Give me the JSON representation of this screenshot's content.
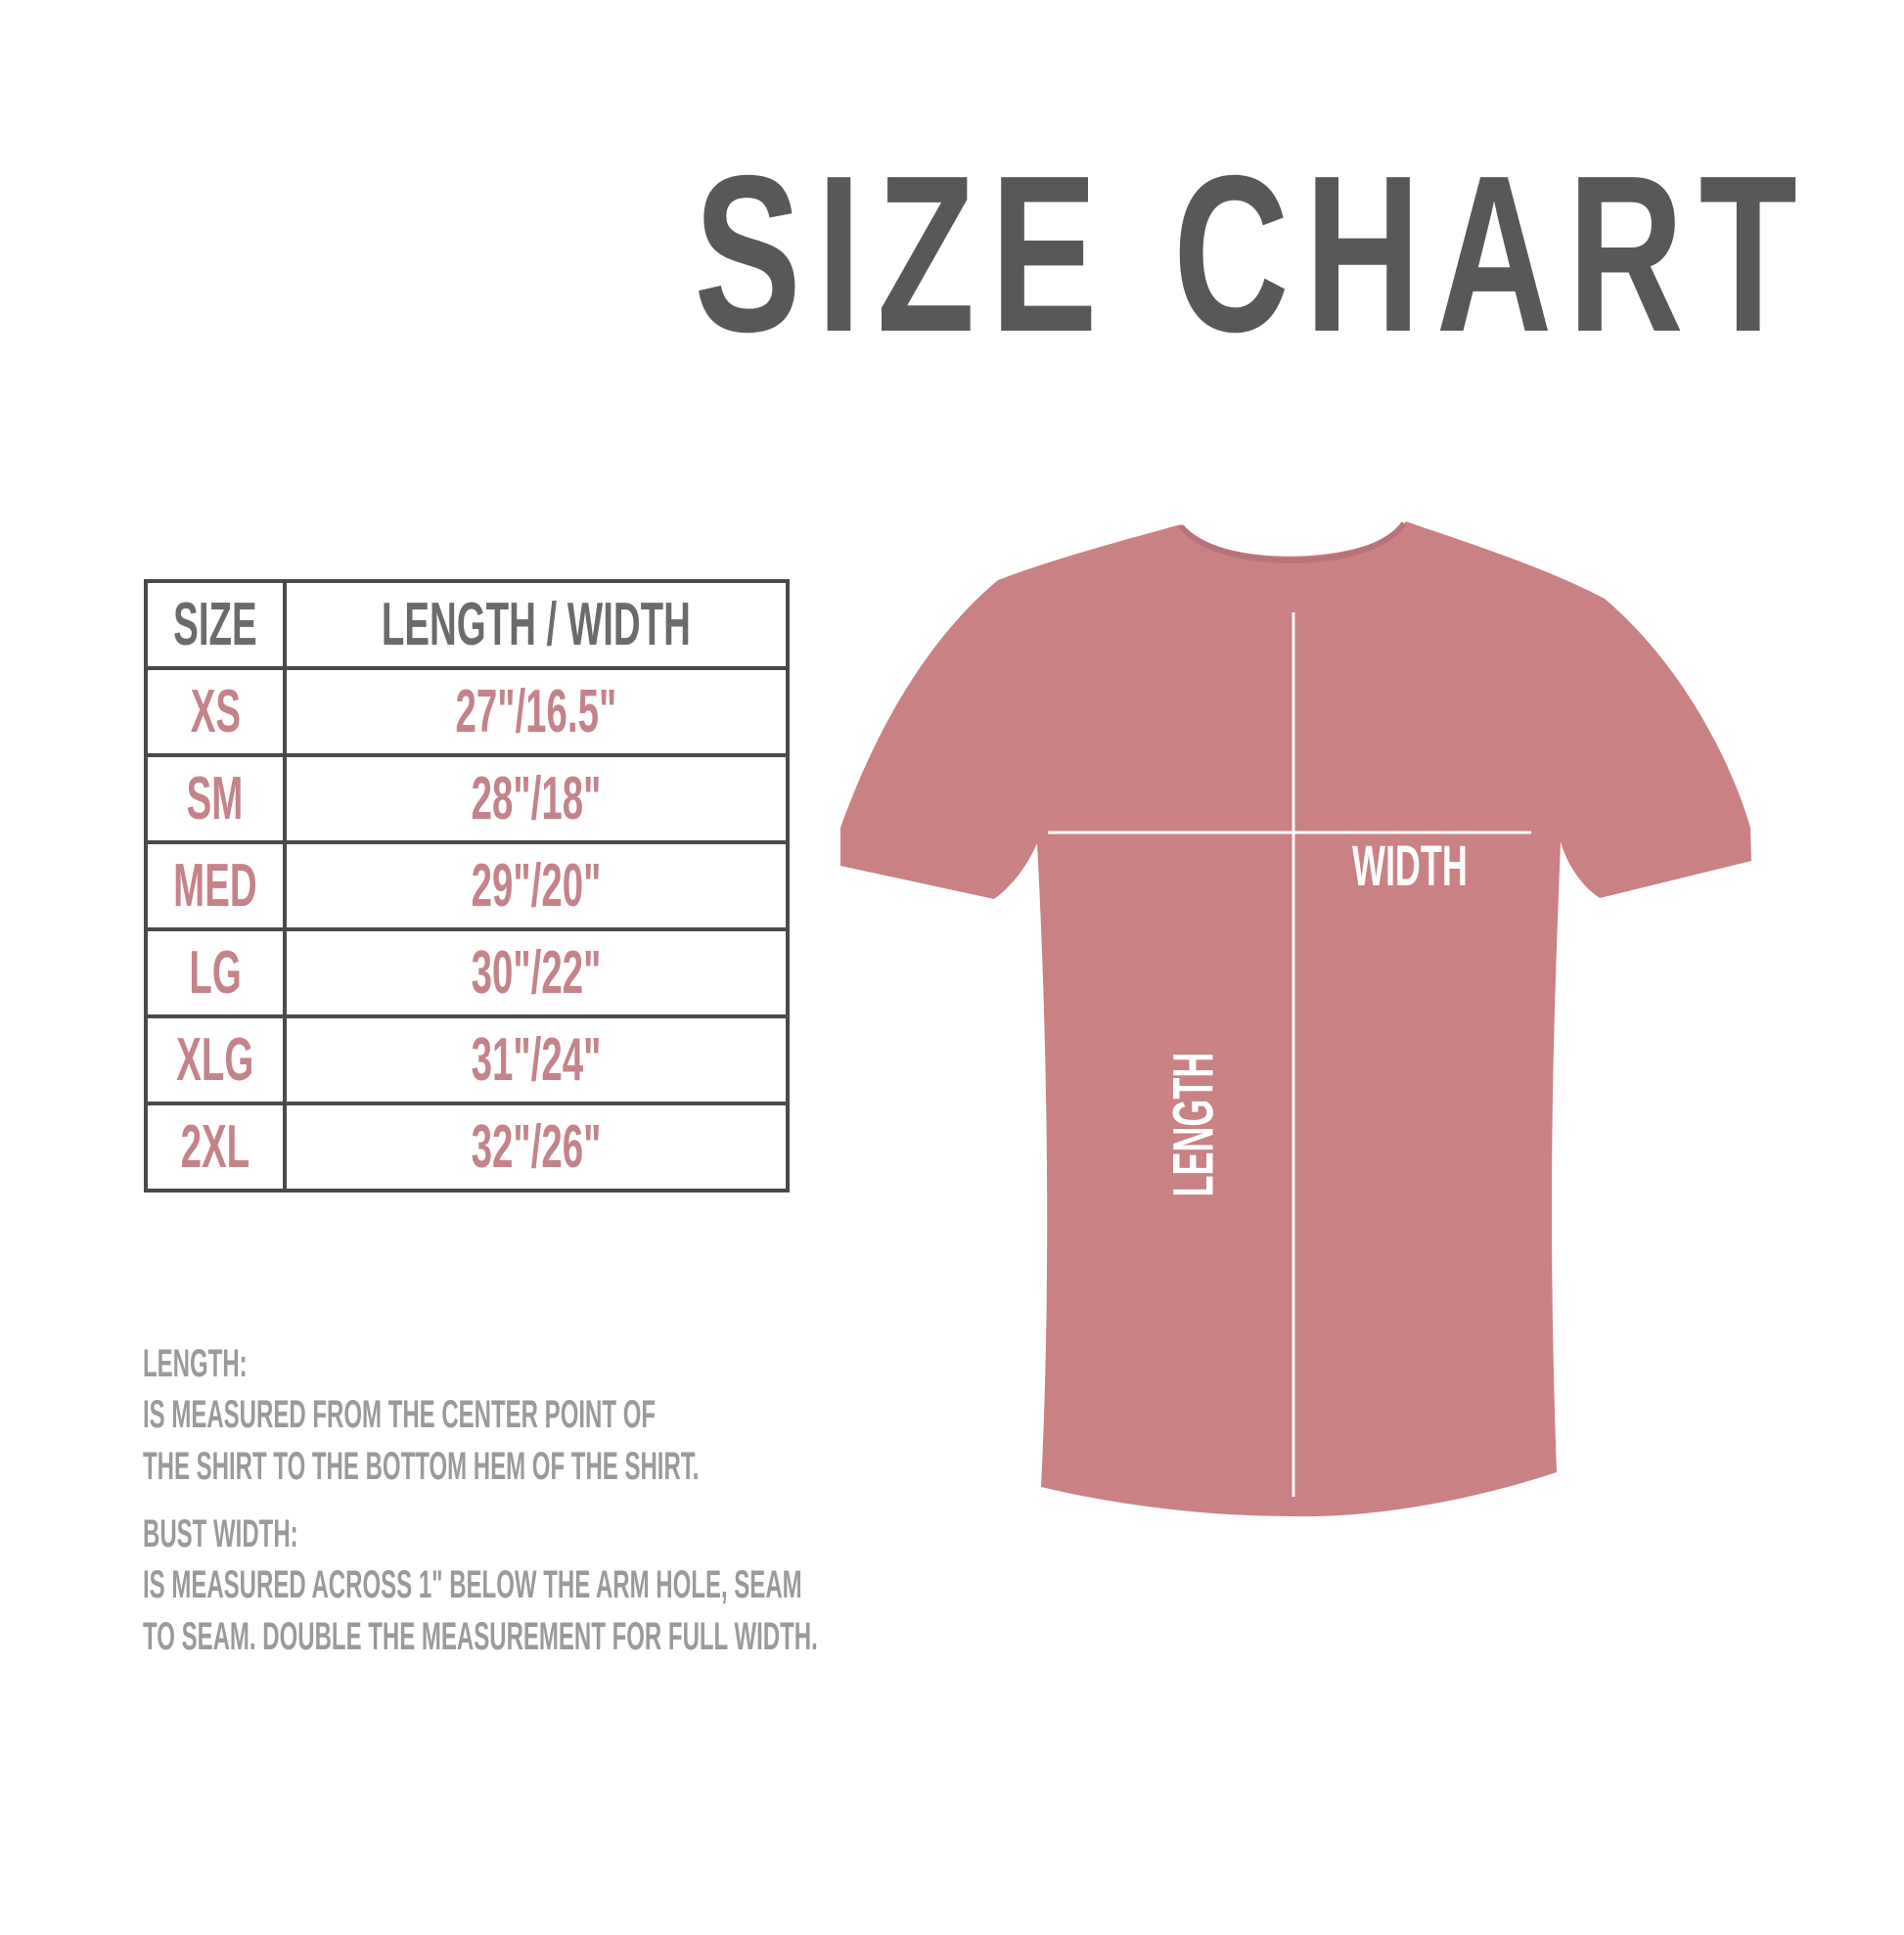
{
  "title": "SIZE CHART",
  "colors": {
    "title": "#58585a",
    "accent": "#c4838a",
    "shirt": "#c98184",
    "note": "#9a9a9a",
    "border": "#4a4a4a"
  },
  "table": {
    "headers": [
      "SIZE",
      "LENGTH / WIDTH"
    ],
    "rows": [
      {
        "size": "XS",
        "value": "27\"/16.5\""
      },
      {
        "size": "SM",
        "value": "28\"/18\""
      },
      {
        "size": "MED",
        "value": "29\"/20\""
      },
      {
        "size": "LG",
        "value": "30\"/22\""
      },
      {
        "size": "XLG",
        "value": "31\"/24\""
      },
      {
        "size": "2XL",
        "value": "32\"/26\""
      }
    ]
  },
  "notes": {
    "length_label": "LENGTH:",
    "length_line1": "IS MEASURED FROM THE CENTER POINT OF",
    "length_line2": "THE SHIRT TO THE BOTTOM HEM OF THE SHIRT.",
    "width_label": "BUST WIDTH:",
    "width_line1": "IS MEASURED ACROSS  1\" BELOW THE ARM HOLE, SEAM",
    "width_line2": "TO SEAM. DOUBLE THE MEASUREMENT FOR FULL WIDTH."
  },
  "shirt": {
    "width_label": "WIDTH",
    "length_label": "LENGTH"
  }
}
